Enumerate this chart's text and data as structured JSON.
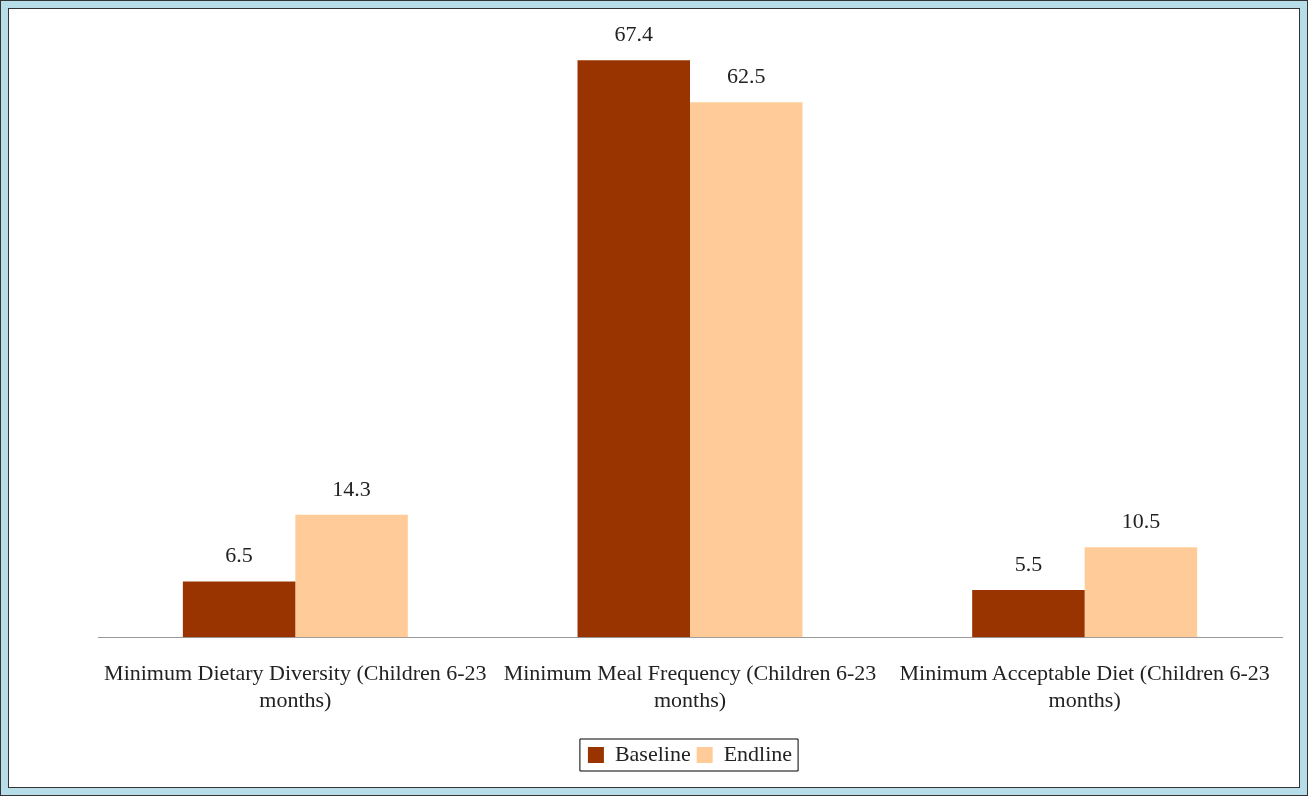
{
  "chart_data": {
    "type": "bar",
    "categories": [
      "Minimum Dietary Diversity (Children 6-23 months)",
      "Minimum Meal Frequency (Children 6-23 months)",
      "Minimum Acceptable Diet (Children 6-23 months)"
    ],
    "series": [
      {
        "name": "Baseline",
        "color": "#993300",
        "values": [
          6.5,
          67.4,
          5.5
        ]
      },
      {
        "name": "Endline",
        "color": "#ffcc99",
        "values": [
          14.3,
          62.5,
          10.5
        ]
      }
    ],
    "data_labels": true,
    "grid": false,
    "legend": "bottom"
  }
}
